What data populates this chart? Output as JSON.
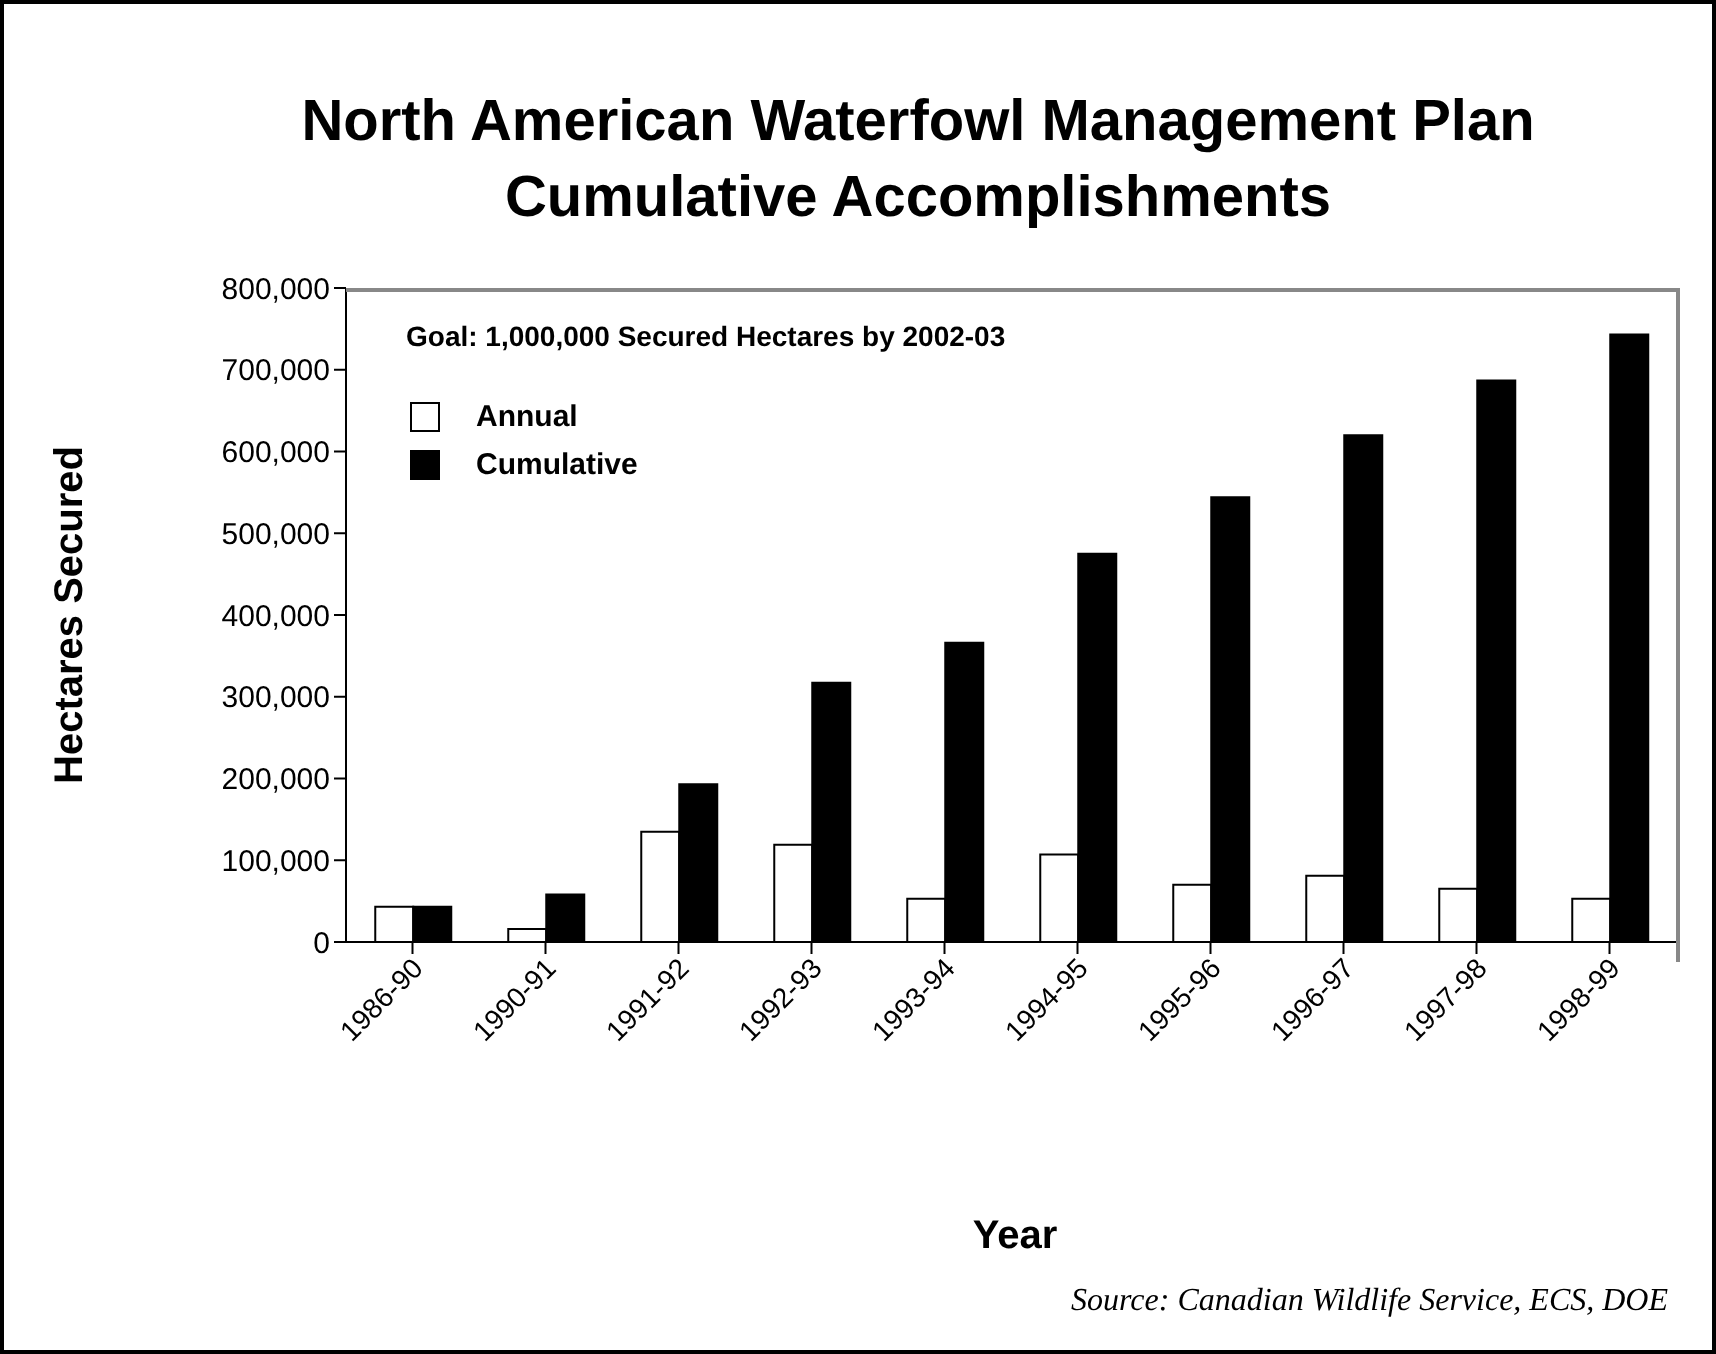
{
  "chart_data": {
    "type": "bar",
    "title": "North American Waterfowl Management Plan\nCumulative Accomplishments",
    "xlabel": "Year",
    "ylabel": "Hectares Secured",
    "categories": [
      "1986-90",
      "1990-91",
      "1991-92",
      "1992-93",
      "1993-94",
      "1994-95",
      "1995-96",
      "1996-97",
      "1997-98",
      "1998-99"
    ],
    "series": [
      {
        "name": "Annual",
        "color": "#ffffff",
        "values": [
          43000,
          16000,
          135000,
          119000,
          53000,
          107000,
          70000,
          81000,
          65000,
          53000
        ]
      },
      {
        "name": "Cumulative",
        "color": "#000000",
        "values": [
          43000,
          58000,
          193000,
          317000,
          366000,
          475000,
          544000,
          620000,
          687000,
          743000
        ]
      }
    ],
    "ylim": [
      0,
      800000
    ],
    "yticks": [
      0,
      {
        "value": 100000,
        "label": "100,000"
      },
      {
        "value": 200000,
        "label": "200,000"
      },
      {
        "value": 300000,
        "label": "300,000"
      },
      {
        "value": 400000,
        "label": "400,000"
      },
      {
        "value": 500000,
        "label": "500,000"
      },
      {
        "value": 600000,
        "label": "600,000"
      },
      {
        "value": 700000,
        "label": "700,000"
      },
      {
        "value": 800000,
        "label": "800,000"
      }
    ],
    "legend": "top left",
    "annotations": [
      "Goal: 1,000,000 Secured Hectares by 2002-03",
      "Source: Canadian Wildlife Service, ECS, DOE"
    ]
  }
}
